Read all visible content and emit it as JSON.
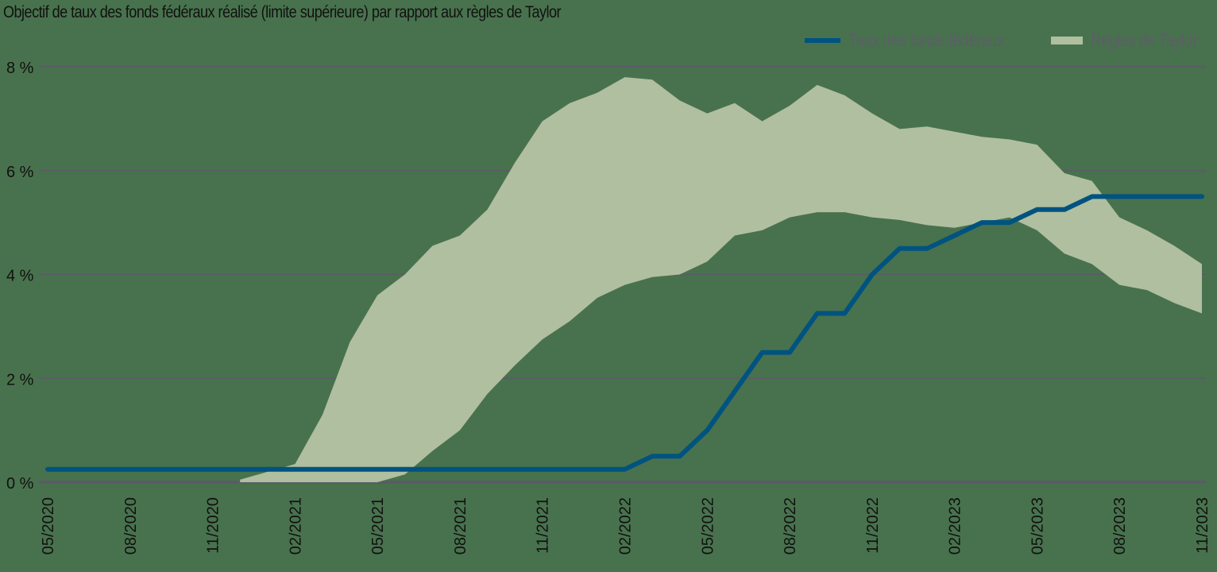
{
  "chart_data": {
    "type": "area",
    "title": "Objectif de taux des fonds fédéraux réalisé (limite supérieure) par rapport aux règles de Taylor",
    "xlabel": "",
    "ylabel": "",
    "ylim": [
      0,
      8
    ],
    "y_ticks": [
      "0 %",
      "2 %",
      "4 %",
      "6 %",
      "8 %"
    ],
    "x_ticks": [
      "05/2020",
      "08/2020",
      "11/2020",
      "02/2021",
      "05/2021",
      "08/2021",
      "11/2021",
      "02/2022",
      "05/2022",
      "08/2022",
      "11/2022",
      "02/2023",
      "05/2023",
      "08/2023",
      "11/2023"
    ],
    "grid": true,
    "legend_position": "top-right",
    "x": [
      "05/2020",
      "06/2020",
      "07/2020",
      "08/2020",
      "09/2020",
      "10/2020",
      "11/2020",
      "12/2020",
      "01/2021",
      "02/2021",
      "03/2021",
      "04/2021",
      "05/2021",
      "06/2021",
      "07/2021",
      "08/2021",
      "09/2021",
      "10/2021",
      "11/2021",
      "12/2021",
      "01/2022",
      "02/2022",
      "03/2022",
      "04/2022",
      "05/2022",
      "06/2022",
      "07/2022",
      "08/2022",
      "09/2022",
      "10/2022",
      "11/2022",
      "12/2022",
      "01/2023",
      "02/2023",
      "03/2023",
      "04/2023",
      "05/2023",
      "06/2023",
      "07/2023",
      "08/2023",
      "09/2023",
      "10/2023",
      "11/2023"
    ],
    "series": [
      {
        "name": "Taux des fonds fédéraux",
        "type": "line",
        "color": "#005380",
        "values": [
          0.25,
          0.25,
          0.25,
          0.25,
          0.25,
          0.25,
          0.25,
          0.25,
          0.25,
          0.25,
          0.25,
          0.25,
          0.25,
          0.25,
          0.25,
          0.25,
          0.25,
          0.25,
          0.25,
          0.25,
          0.25,
          0.25,
          0.5,
          0.5,
          1.0,
          1.75,
          2.5,
          2.5,
          3.25,
          3.25,
          4.0,
          4.5,
          4.5,
          4.75,
          5.0,
          5.0,
          5.25,
          5.25,
          5.5,
          5.5,
          5.5,
          5.5,
          5.5
        ]
      },
      {
        "name": "Règles de Taylor",
        "type": "band",
        "color": "#b0bf9f",
        "upper": [
          null,
          null,
          null,
          null,
          null,
          null,
          null,
          0.05,
          0.2,
          0.35,
          1.3,
          2.7,
          3.6,
          4.0,
          4.55,
          4.75,
          5.25,
          6.15,
          6.95,
          7.3,
          7.5,
          7.8,
          7.75,
          7.35,
          7.1,
          7.3,
          6.95,
          7.25,
          7.65,
          7.45,
          7.1,
          6.8,
          6.85,
          6.75,
          6.65,
          6.6,
          6.5,
          5.95,
          5.8,
          5.1,
          4.85,
          4.55,
          4.2
        ],
        "lower": [
          null,
          null,
          null,
          null,
          null,
          null,
          null,
          0.0,
          0.0,
          0.0,
          0.0,
          0.0,
          0.0,
          0.15,
          0.6,
          1.0,
          1.7,
          2.25,
          2.75,
          3.1,
          3.55,
          3.8,
          3.95,
          4.0,
          4.25,
          4.75,
          4.85,
          5.1,
          5.2,
          5.2,
          5.1,
          5.05,
          4.95,
          4.9,
          5.0,
          5.1,
          4.85,
          4.4,
          4.2,
          3.8,
          3.7,
          3.45,
          3.25
        ]
      }
    ]
  },
  "legend": {
    "items": [
      {
        "label": "Taux des fonds fédéraux",
        "color": "#005380"
      },
      {
        "label": "Règles de Taylor",
        "color": "#b0bf9f"
      }
    ]
  },
  "colors": {
    "background": "#48724d",
    "gridline": "#5a5c66",
    "fed_line": "#005380",
    "taylor_band": "#b0bf9f"
  }
}
